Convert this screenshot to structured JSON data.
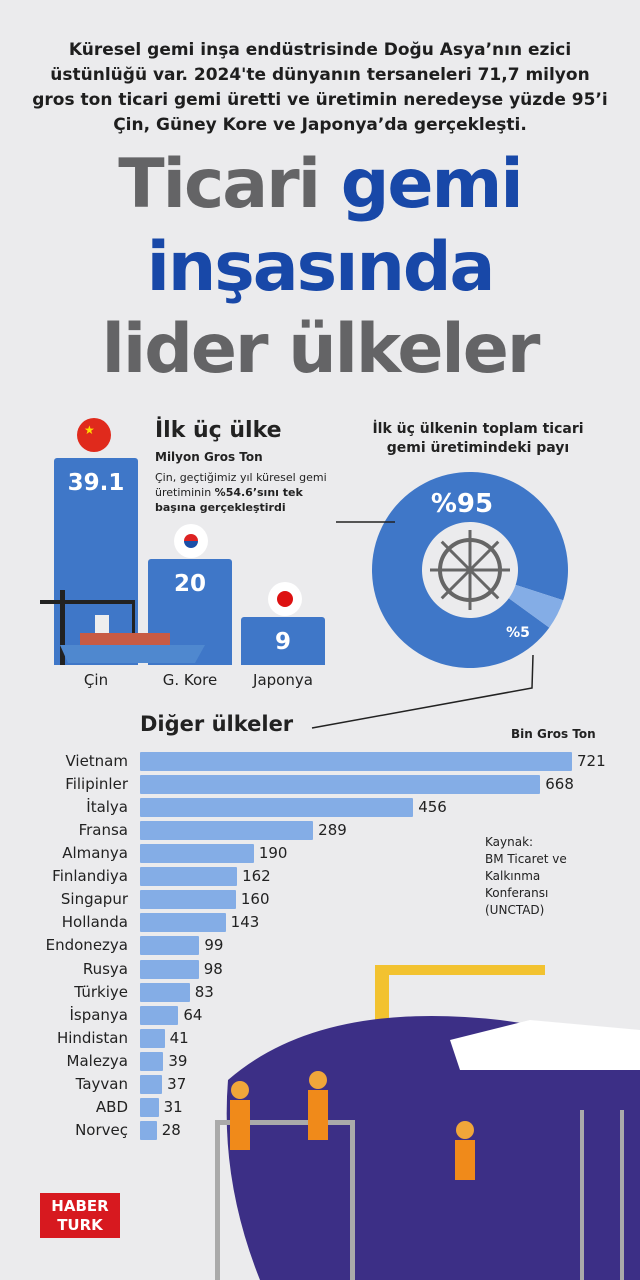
{
  "intro": "Küresel gemi inşa endüstrisinde Doğu Asya’nın ezici üstünlüğü var. 2024'te dünyanın tersaneleri 71,7 milyon gros ton ticari gemi üretti ve üretimin neredeyse yüzde 95’i Çin, Güney Kore ve Japonya’da gerçekleşti.",
  "title": {
    "part1": "Ticari",
    "part2": "gemi",
    "line2": "inşasında",
    "line3": "lider ülkeler"
  },
  "chart_data": [
    {
      "type": "bar",
      "title": "İlk üç ülke",
      "ylabel": "Milyon Gros Ton",
      "categories": [
        "Çin",
        "G. Kore",
        "Japonya"
      ],
      "values": [
        39.1,
        20,
        9
      ],
      "value_labels": [
        "39.1",
        "20",
        "9"
      ],
      "annotation_pre": "Çin, geçtiğimiz yıl küresel gemi üretiminin ",
      "annotation_bold": "%54.6’sını tek başına gerçekleştirdi",
      "color": "#3f77c8"
    },
    {
      "type": "pie",
      "title": "İlk üç ülkenin toplam ticari gemi üretimindeki payı",
      "values": [
        95,
        5
      ],
      "labels": [
        "%95",
        "%5"
      ],
      "colors": [
        "#3f77c8",
        "#84ade6"
      ],
      "icon": "ship-wheel-icon"
    },
    {
      "type": "bar",
      "orientation": "horizontal",
      "title": "Diğer ülkeler",
      "unit": "Bin Gros Ton",
      "categories": [
        "Vietnam",
        "Filipinler",
        "İtalya",
        "Fransa",
        "Almanya",
        "Finlandiya",
        "Singapur",
        "Hollanda",
        "Endonezya",
        "Rusya",
        "Türkiye",
        "İspanya",
        "Hindistan",
        "Malezya",
        "Tayvan",
        "ABD",
        "Norveç"
      ],
      "values": [
        721,
        668,
        456,
        289,
        190,
        162,
        160,
        143,
        99,
        98,
        83,
        64,
        41,
        39,
        37,
        31,
        28
      ],
      "color": "#84ade6"
    }
  ],
  "source": [
    "Kaynak:",
    "BM Ticaret ve",
    "Kalkınma",
    "Konferansı",
    "(UNCTAD)"
  ],
  "logo": {
    "line1": "HABER",
    "line2": "TURK",
    "color": "#d7191f"
  }
}
